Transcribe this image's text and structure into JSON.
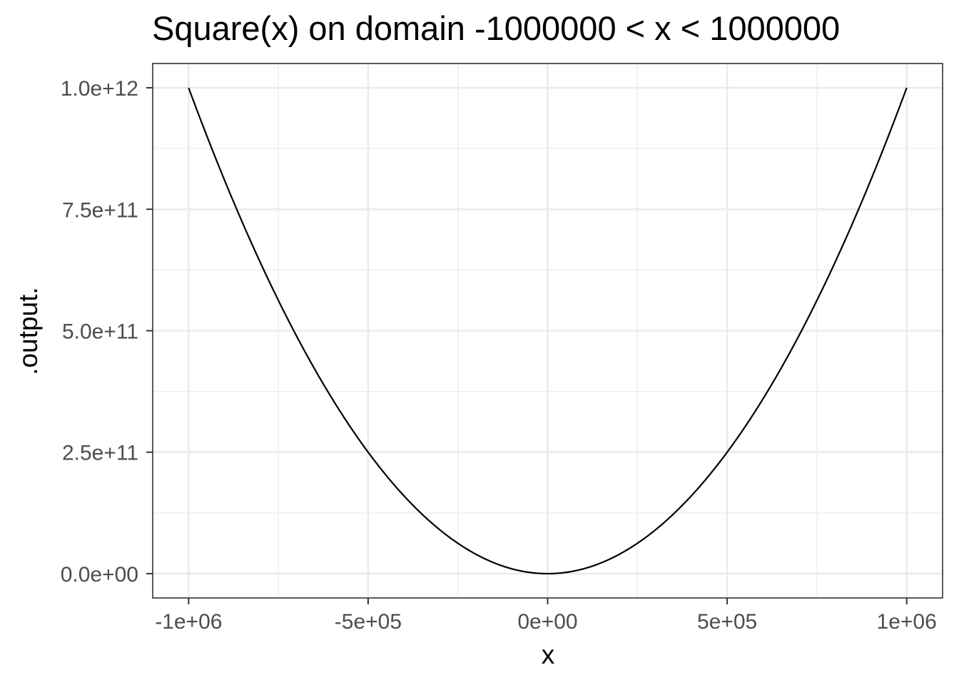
{
  "chart_data": {
    "type": "line",
    "title": "Square(x) on domain -1000000 < x < 1000000",
    "xlabel": "x",
    "ylabel": ".output.",
    "xlim": [
      -1100000,
      1100000
    ],
    "ylim": [
      -50000000000,
      1050000000000
    ],
    "x_ticks": [
      -1000000,
      -500000,
      0,
      500000,
      1000000
    ],
    "x_tick_labels": [
      "-1e+06",
      "-5e+05",
      "0e+00",
      "5e+05",
      "1e+06"
    ],
    "x_minor_ticks": [
      -750000,
      -250000,
      250000,
      750000
    ],
    "y_ticks": [
      0,
      250000000000,
      500000000000,
      750000000000,
      1000000000000
    ],
    "y_tick_labels": [
      "0.0e+00",
      "2.5e+11",
      "5.0e+11",
      "7.5e+11",
      "1.0e+12"
    ],
    "y_minor_ticks": [
      125000000000,
      375000000000,
      625000000000,
      875000000000
    ],
    "grid": true,
    "legend": "none",
    "series": [
      {
        "function": "x^2",
        "color": "#000000",
        "x": [
          -1000000,
          -900000,
          -800000,
          -700000,
          -600000,
          -500000,
          -400000,
          -300000,
          -200000,
          -100000,
          0,
          100000,
          200000,
          300000,
          400000,
          500000,
          600000,
          700000,
          800000,
          900000,
          1000000
        ],
        "y": [
          1000000000000,
          810000000000,
          640000000000,
          490000000000,
          360000000000,
          250000000000,
          160000000000,
          90000000000,
          40000000000,
          10000000000,
          0,
          10000000000,
          40000000000,
          90000000000,
          160000000000,
          250000000000,
          360000000000,
          490000000000,
          640000000000,
          810000000000,
          1000000000000
        ]
      }
    ],
    "colors": {
      "background": "#ffffff",
      "panel_border": "#333333",
      "grid_major": "#ebebeb",
      "grid_minor": "#ebebeb",
      "tick_mark": "#333333",
      "tick_label": "#4d4d4d",
      "line": "#000000"
    }
  }
}
